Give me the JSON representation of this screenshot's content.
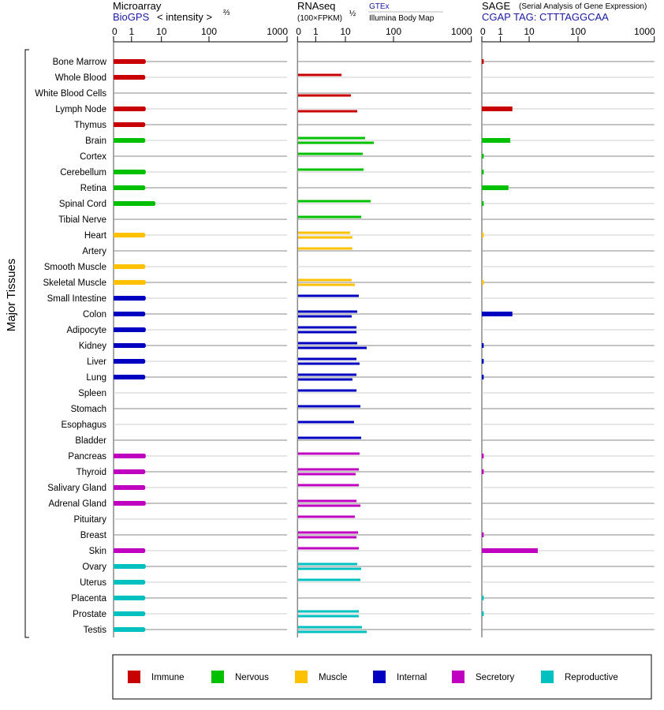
{
  "header": {
    "microarray": {
      "title": "Microarray",
      "source": "BioGPS",
      "unit": "< intensity >",
      "unit_sup": "⅔"
    },
    "rnaseq": {
      "title": "RNAseq",
      "unit": "(100×FPKM)",
      "unit_sup": "½",
      "source1": "GTEx",
      "source2": "Illumina Body Map"
    },
    "sage": {
      "title": "SAGE",
      "subtitle": "(Serial Analysis of Gene Expression)",
      "tag": "CGAP TAG: CTTTAGGCAA"
    }
  },
  "ylabel": "Major Tissues",
  "colors": {
    "immune": "#c80000",
    "nervous": "#00c000",
    "muscle": "#ffc000",
    "internal": "#0000c0",
    "secretory": "#c000c0",
    "reproductive": "#00c0c0"
  },
  "legend": [
    {
      "key": "immune",
      "label": "Immune"
    },
    {
      "key": "nervous",
      "label": "Nervous"
    },
    {
      "key": "muscle",
      "label": "Muscle"
    },
    {
      "key": "internal",
      "label": "Internal"
    },
    {
      "key": "secretory",
      "label": "Secretory"
    },
    {
      "key": "reproductive",
      "label": "Reproductive"
    }
  ],
  "chart_data": {
    "type": "bar",
    "orientation": "horizontal",
    "panels": [
      {
        "key": "microarray",
        "ticks": [
          0,
          1,
          10,
          100,
          1000
        ],
        "tick_labels": [
          "0",
          "1",
          "10",
          "100",
          "1000"
        ],
        "range": [
          0,
          1000
        ]
      },
      {
        "key": "rnaseq",
        "ticks": [
          0,
          1,
          10,
          100,
          1000
        ],
        "tick_labels": [
          "0",
          "1",
          "10",
          "100",
          "1000"
        ],
        "range": [
          0,
          1000
        ]
      },
      {
        "key": "sage",
        "ticks": [
          0,
          1,
          10,
          100,
          1000
        ],
        "tick_labels": [
          "0",
          "1",
          "10",
          "100",
          "1000"
        ],
        "range": [
          0,
          1000
        ]
      }
    ],
    "grid": true,
    "legend_placement": "bottom",
    "tissues": [
      {
        "name": "Bone Marrow",
        "group": "immune",
        "microarray": 2.8,
        "gtex": null,
        "illumina": null,
        "sage": 0.1
      },
      {
        "name": "Whole Blood",
        "group": "immune",
        "microarray": 2.7,
        "gtex": 7.4,
        "illumina": null,
        "sage": null
      },
      {
        "name": "White Blood Cells",
        "group": "immune",
        "microarray": null,
        "gtex": null,
        "illumina": 13.0,
        "sage": null
      },
      {
        "name": "Lymph Node",
        "group": "immune",
        "microarray": 2.8,
        "gtex": null,
        "illumina": 17.6,
        "sage": 2.6
      },
      {
        "name": "Thymus",
        "group": "immune",
        "microarray": 2.7,
        "gtex": null,
        "illumina": null,
        "sage": null
      },
      {
        "name": "Brain",
        "group": "nervous",
        "microarray": 2.7,
        "gtex": 25.7,
        "illumina": 38.9,
        "sage": 2.2
      },
      {
        "name": "Cortex",
        "group": "nervous",
        "microarray": null,
        "gtex": 22.9,
        "illumina": null,
        "sage": 0.1
      },
      {
        "name": "Cerebellum",
        "group": "nervous",
        "microarray": 2.8,
        "gtex": 23.8,
        "illumina": null,
        "sage": 0.1
      },
      {
        "name": "Retina",
        "group": "nervous",
        "microarray": 2.7,
        "gtex": null,
        "illumina": null,
        "sage": 1.9
      },
      {
        "name": "Spinal Cord",
        "group": "nervous",
        "microarray": 5.9,
        "gtex": 33.5,
        "illumina": null,
        "sage": 0.1
      },
      {
        "name": "Tibial Nerve",
        "group": "nervous",
        "microarray": null,
        "gtex": 21.3,
        "illumina": null,
        "sage": null
      },
      {
        "name": "Heart",
        "group": "muscle",
        "microarray": 2.7,
        "gtex": 12.5,
        "illumina": 14.0,
        "sage": 0.1
      },
      {
        "name": "Artery",
        "group": "muscle",
        "microarray": null,
        "gtex": 14.0,
        "illumina": null,
        "sage": null
      },
      {
        "name": "Smooth Muscle",
        "group": "muscle",
        "microarray": 2.7,
        "gtex": null,
        "illumina": null,
        "sage": null
      },
      {
        "name": "Skeletal Muscle",
        "group": "muscle",
        "microarray": 2.8,
        "gtex": 13.5,
        "illumina": 15.7,
        "sage": 0.1
      },
      {
        "name": "Small Intestine",
        "group": "internal",
        "microarray": 2.8,
        "gtex": 19.0,
        "illumina": null,
        "sage": null
      },
      {
        "name": "Colon",
        "group": "internal",
        "microarray": 2.7,
        "gtex": 17.6,
        "illumina": 13.5,
        "sage": 2.6
      },
      {
        "name": "Adipocyte",
        "group": "internal",
        "microarray": 2.8,
        "gtex": 17.0,
        "illumina": 17.0,
        "sage": null
      },
      {
        "name": "Kidney",
        "group": "internal",
        "microarray": 2.8,
        "gtex": 17.6,
        "illumina": 27.7,
        "sage": 0.1
      },
      {
        "name": "Liver",
        "group": "internal",
        "microarray": 2.7,
        "gtex": 17.0,
        "illumina": 19.7,
        "sage": 0.1
      },
      {
        "name": "Lung",
        "group": "internal",
        "microarray": 2.7,
        "gtex": 17.0,
        "illumina": 14.0,
        "sage": 0.1
      },
      {
        "name": "Spleen",
        "group": "internal",
        "microarray": null,
        "gtex": 17.0,
        "illumina": null,
        "sage": null
      },
      {
        "name": "Stomach",
        "group": "internal",
        "microarray": null,
        "gtex": 20.5,
        "illumina": null,
        "sage": null
      },
      {
        "name": "Esophagus",
        "group": "internal",
        "microarray": null,
        "gtex": 15.1,
        "illumina": null,
        "sage": null
      },
      {
        "name": "Bladder",
        "group": "internal",
        "microarray": null,
        "gtex": 21.3,
        "illumina": null,
        "sage": null
      },
      {
        "name": "Pancreas",
        "group": "secretory",
        "microarray": 2.8,
        "gtex": 19.7,
        "illumina": null,
        "sage": 0.1
      },
      {
        "name": "Thyroid",
        "group": "secretory",
        "microarray": 2.7,
        "gtex": 19.0,
        "illumina": 16.3,
        "sage": 0.1
      },
      {
        "name": "Salivary Gland",
        "group": "secretory",
        "microarray": 2.7,
        "gtex": 19.0,
        "illumina": null,
        "sage": null
      },
      {
        "name": "Adrenal Gland",
        "group": "secretory",
        "microarray": 2.8,
        "gtex": 17.0,
        "illumina": 20.5,
        "sage": null
      },
      {
        "name": "Pituitary",
        "group": "secretory",
        "microarray": null,
        "gtex": 15.7,
        "illumina": null,
        "sage": null
      },
      {
        "name": "Breast",
        "group": "secretory",
        "microarray": null,
        "gtex": 18.3,
        "illumina": 17.0,
        "sage": 0.1
      },
      {
        "name": "Skin",
        "group": "secretory",
        "microarray": 2.7,
        "gtex": 19.0,
        "illumina": null,
        "sage": 15
      },
      {
        "name": "Ovary",
        "group": "reproductive",
        "microarray": 2.8,
        "gtex": 17.6,
        "illumina": 21.3,
        "sage": null
      },
      {
        "name": "Uterus",
        "group": "reproductive",
        "microarray": 2.7,
        "gtex": 20.5,
        "illumina": null,
        "sage": null
      },
      {
        "name": "Placenta",
        "group": "reproductive",
        "microarray": 2.7,
        "gtex": null,
        "illumina": null,
        "sage": 0.1
      },
      {
        "name": "Prostate",
        "group": "reproductive",
        "microarray": 2.7,
        "gtex": 19.0,
        "illumina": 19.0,
        "sage": 0.1
      },
      {
        "name": "Testis",
        "group": "reproductive",
        "microarray": 2.7,
        "gtex": 22.1,
        "illumina": 27.7,
        "sage": null
      }
    ]
  }
}
